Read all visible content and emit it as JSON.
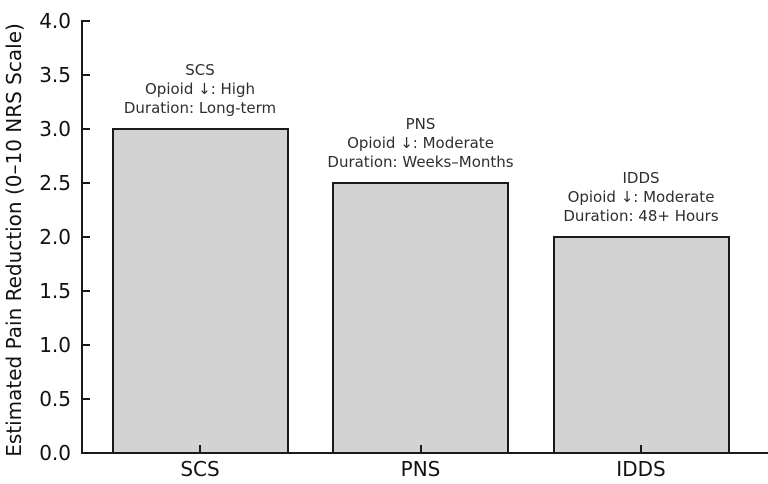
{
  "figure": {
    "background_color": "#ffffff",
    "axis_color": "#1a1a1a",
    "text_color": "#111111",
    "annotation_text_color": "#2e2e2e"
  },
  "chart_data": {
    "type": "bar",
    "title": "",
    "categories": [
      "SCS",
      "PNS",
      "IDDS"
    ],
    "values": [
      3.0,
      2.5,
      2.0
    ],
    "bar_fill_color": "#d3d3d3",
    "bar_edge_color": "#1a1a1a",
    "xlabel": "",
    "ylabel": "Estimated Pain Reduction (0–10 NRS Scale)",
    "ylim": [
      0.0,
      4.0
    ],
    "ytick_step": 0.5,
    "yticks": [
      "0.0",
      "0.5",
      "1.0",
      "1.5",
      "2.0",
      "2.5",
      "3.0",
      "3.5",
      "4.0"
    ],
    "grid": false,
    "legend": null,
    "tick_direction": "in",
    "annotations": [
      {
        "category": "SCS",
        "lines": [
          "SCS",
          "Opioid ↓: High",
          "Duration: Long-term"
        ]
      },
      {
        "category": "PNS",
        "lines": [
          "PNS",
          "Opioid ↓: Moderate",
          "Duration: Weeks–Months"
        ]
      },
      {
        "category": "IDDS",
        "lines": [
          "IDDS",
          "Opioid ↓: Moderate",
          "Duration: 48+ Hours"
        ]
      }
    ]
  }
}
